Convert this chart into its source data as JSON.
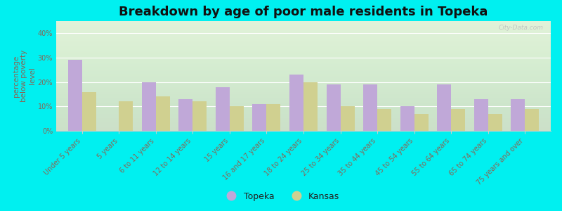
{
  "title": "Breakdown by age of poor male residents in Topeka",
  "ylabel": "percentage\nbelow poverty\nlevel",
  "categories": [
    "Under 5 years",
    "5 years",
    "6 to 11 years",
    "12 to 14 years",
    "15 years",
    "16 and 17 years",
    "18 to 24 years",
    "25 to 34 years",
    "35 to 44 years",
    "45 to 54 years",
    "55 to 64 years",
    "65 to 74 years",
    "75 years and over"
  ],
  "topeka_values": [
    29,
    0,
    20,
    13,
    18,
    11,
    23,
    19,
    19,
    10,
    19,
    13,
    13
  ],
  "kansas_values": [
    16,
    12,
    14,
    12,
    10,
    11,
    20,
    10,
    9,
    7,
    9,
    7,
    9
  ],
  "topeka_color": "#c0a8d8",
  "kansas_color": "#d0d090",
  "cyan_bg": "#00f0f0",
  "plot_bg_top": "#e8f5e0",
  "plot_bg_bottom": "#f8fff0",
  "ylim": [
    0,
    45
  ],
  "yticks": [
    0,
    10,
    20,
    30,
    40
  ],
  "ytick_labels": [
    "0%",
    "10%",
    "20%",
    "30%",
    "40%"
  ],
  "title_fontsize": 13,
  "axis_label_fontsize": 7.5,
  "tick_label_fontsize": 7,
  "legend_fontsize": 9,
  "watermark_text": "City-Data.com",
  "bar_width": 0.38,
  "tick_color": "#886655",
  "ylabel_color": "#886655"
}
